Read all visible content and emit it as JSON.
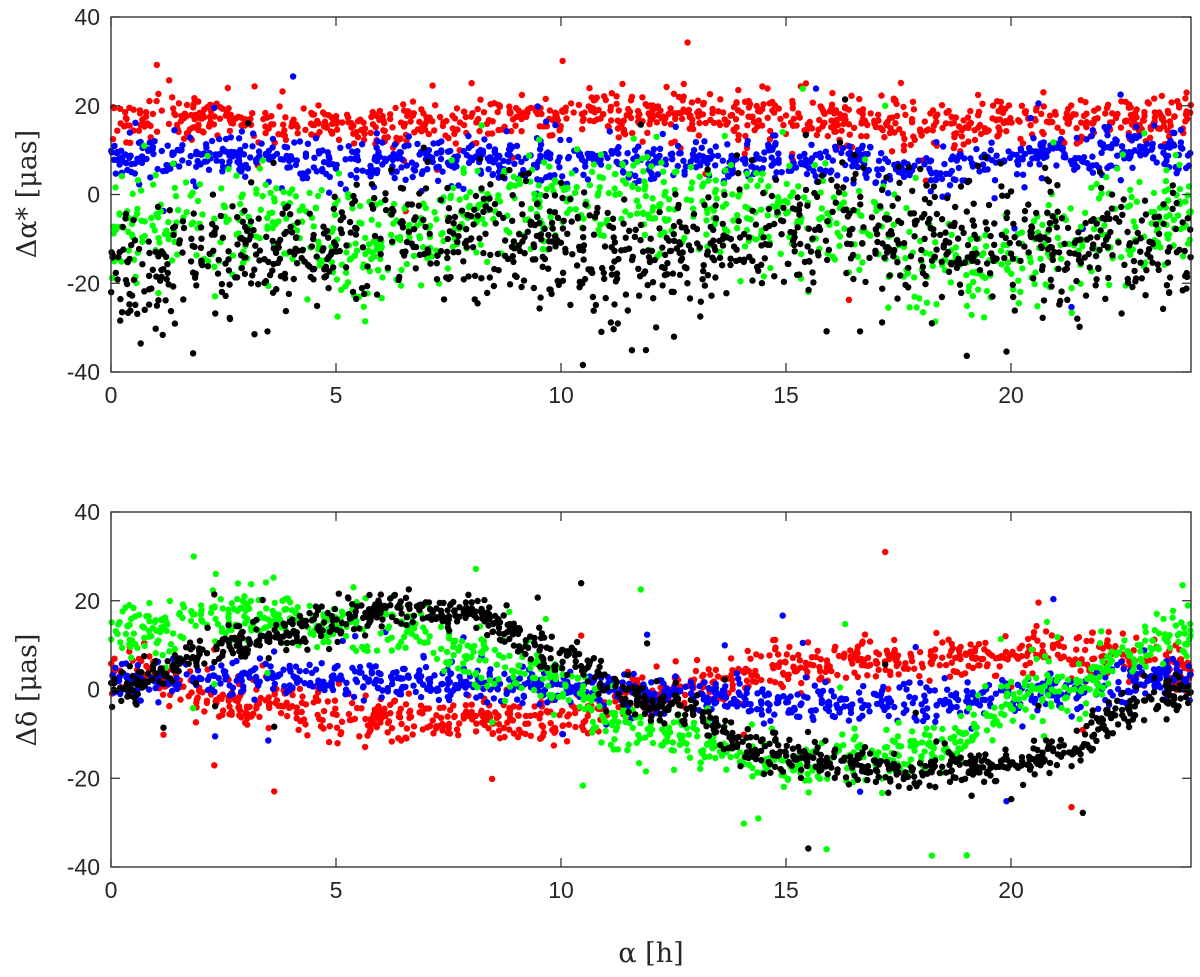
{
  "chart_data": [
    {
      "type": "scatter",
      "panel": "top",
      "ylabel": "Δα* [μas]",
      "xlabel": "",
      "xlim": [
        0,
        24
      ],
      "ylim": [
        -40,
        40
      ],
      "xticks": [
        0,
        5,
        10,
        15,
        20
      ],
      "yticks": [
        -40,
        -20,
        0,
        20,
        40
      ],
      "grid": false,
      "series": [
        {
          "color": "#ff0000",
          "curve": [
            [
              0,
              17
            ],
            [
              3,
              16.5
            ],
            [
              6,
              15
            ],
            [
              10,
              17.5
            ],
            [
              12,
              18
            ],
            [
              15,
              17.5
            ],
            [
              18,
              15.5
            ],
            [
              21,
              17
            ],
            [
              24,
              17
            ]
          ],
          "spread": 2.5,
          "count": 900
        },
        {
          "color": "#0000ff",
          "curve": [
            [
              0,
              8
            ],
            [
              3,
              8.5
            ],
            [
              6,
              7
            ],
            [
              9,
              8
            ],
            [
              12,
              8.5
            ],
            [
              15,
              7
            ],
            [
              18,
              6
            ],
            [
              21,
              9
            ],
            [
              24,
              9
            ]
          ],
          "spread": 2.5,
          "count": 900
        },
        {
          "color": "#00ff00",
          "curve": [
            [
              0,
              -7
            ],
            [
              3,
              -6
            ],
            [
              6,
              -12
            ],
            [
              9,
              -2
            ],
            [
              11,
              0
            ],
            [
              13,
              -3
            ],
            [
              16,
              -5
            ],
            [
              19,
              -17
            ],
            [
              22,
              -7
            ],
            [
              24,
              -5
            ]
          ],
          "spread": 6,
          "count": 900
        },
        {
          "color": "#000000",
          "curve": [
            [
              0,
              -18
            ],
            [
              3,
              -13
            ],
            [
              6,
              -8
            ],
            [
              9,
              -10
            ],
            [
              11,
              -16
            ],
            [
              13,
              -14
            ],
            [
              16,
              -6
            ],
            [
              18,
              -10
            ],
            [
              21,
              -12
            ],
            [
              24,
              -12
            ]
          ],
          "spread": 7,
          "count": 1100
        }
      ]
    },
    {
      "type": "scatter",
      "panel": "bottom",
      "ylabel": "Δδ [μas]",
      "xlabel": "α [h]",
      "xlim": [
        0,
        24
      ],
      "ylim": [
        -40,
        40
      ],
      "xticks": [
        0,
        5,
        10,
        15,
        20
      ],
      "yticks": [
        -40,
        -20,
        0,
        20,
        40
      ],
      "grid": false,
      "series": [
        {
          "color": "#ff0000",
          "curve": [
            [
              0,
              4
            ],
            [
              3,
              -3
            ],
            [
              7,
              -7
            ],
            [
              10,
              -6
            ],
            [
              12,
              -1
            ],
            [
              15,
              5
            ],
            [
              18,
              7
            ],
            [
              21,
              8
            ],
            [
              24,
              4
            ]
          ],
          "spread": 2.5,
          "count": 900
        },
        {
          "color": "#0000ff",
          "curve": [
            [
              0,
              2
            ],
            [
              3,
              3
            ],
            [
              6,
              2
            ],
            [
              9,
              1
            ],
            [
              12,
              -1
            ],
            [
              15,
              -3
            ],
            [
              18,
              -3
            ],
            [
              21,
              0
            ],
            [
              24,
              3
            ]
          ],
          "spread": 2,
          "count": 900
        },
        {
          "color": "#00ff00",
          "curve": [
            [
              0,
              13
            ],
            [
              3,
              17
            ],
            [
              6,
              15
            ],
            [
              9,
              5
            ],
            [
              12,
              -10
            ],
            [
              15,
              -17
            ],
            [
              18,
              -14
            ],
            [
              21,
              0
            ],
            [
              24,
              13
            ]
          ],
          "spread": 3,
          "count": 900
        },
        {
          "color": "#000000",
          "curve": [
            [
              0,
              0
            ],
            [
              3,
              11
            ],
            [
              6,
              18
            ],
            [
              8,
              17
            ],
            [
              10,
              8
            ],
            [
              12,
              -3
            ],
            [
              15,
              -15
            ],
            [
              17,
              -18
            ],
            [
              20,
              -17
            ],
            [
              24,
              -1
            ]
          ],
          "spread": 2,
          "count": 1000
        }
      ]
    }
  ]
}
